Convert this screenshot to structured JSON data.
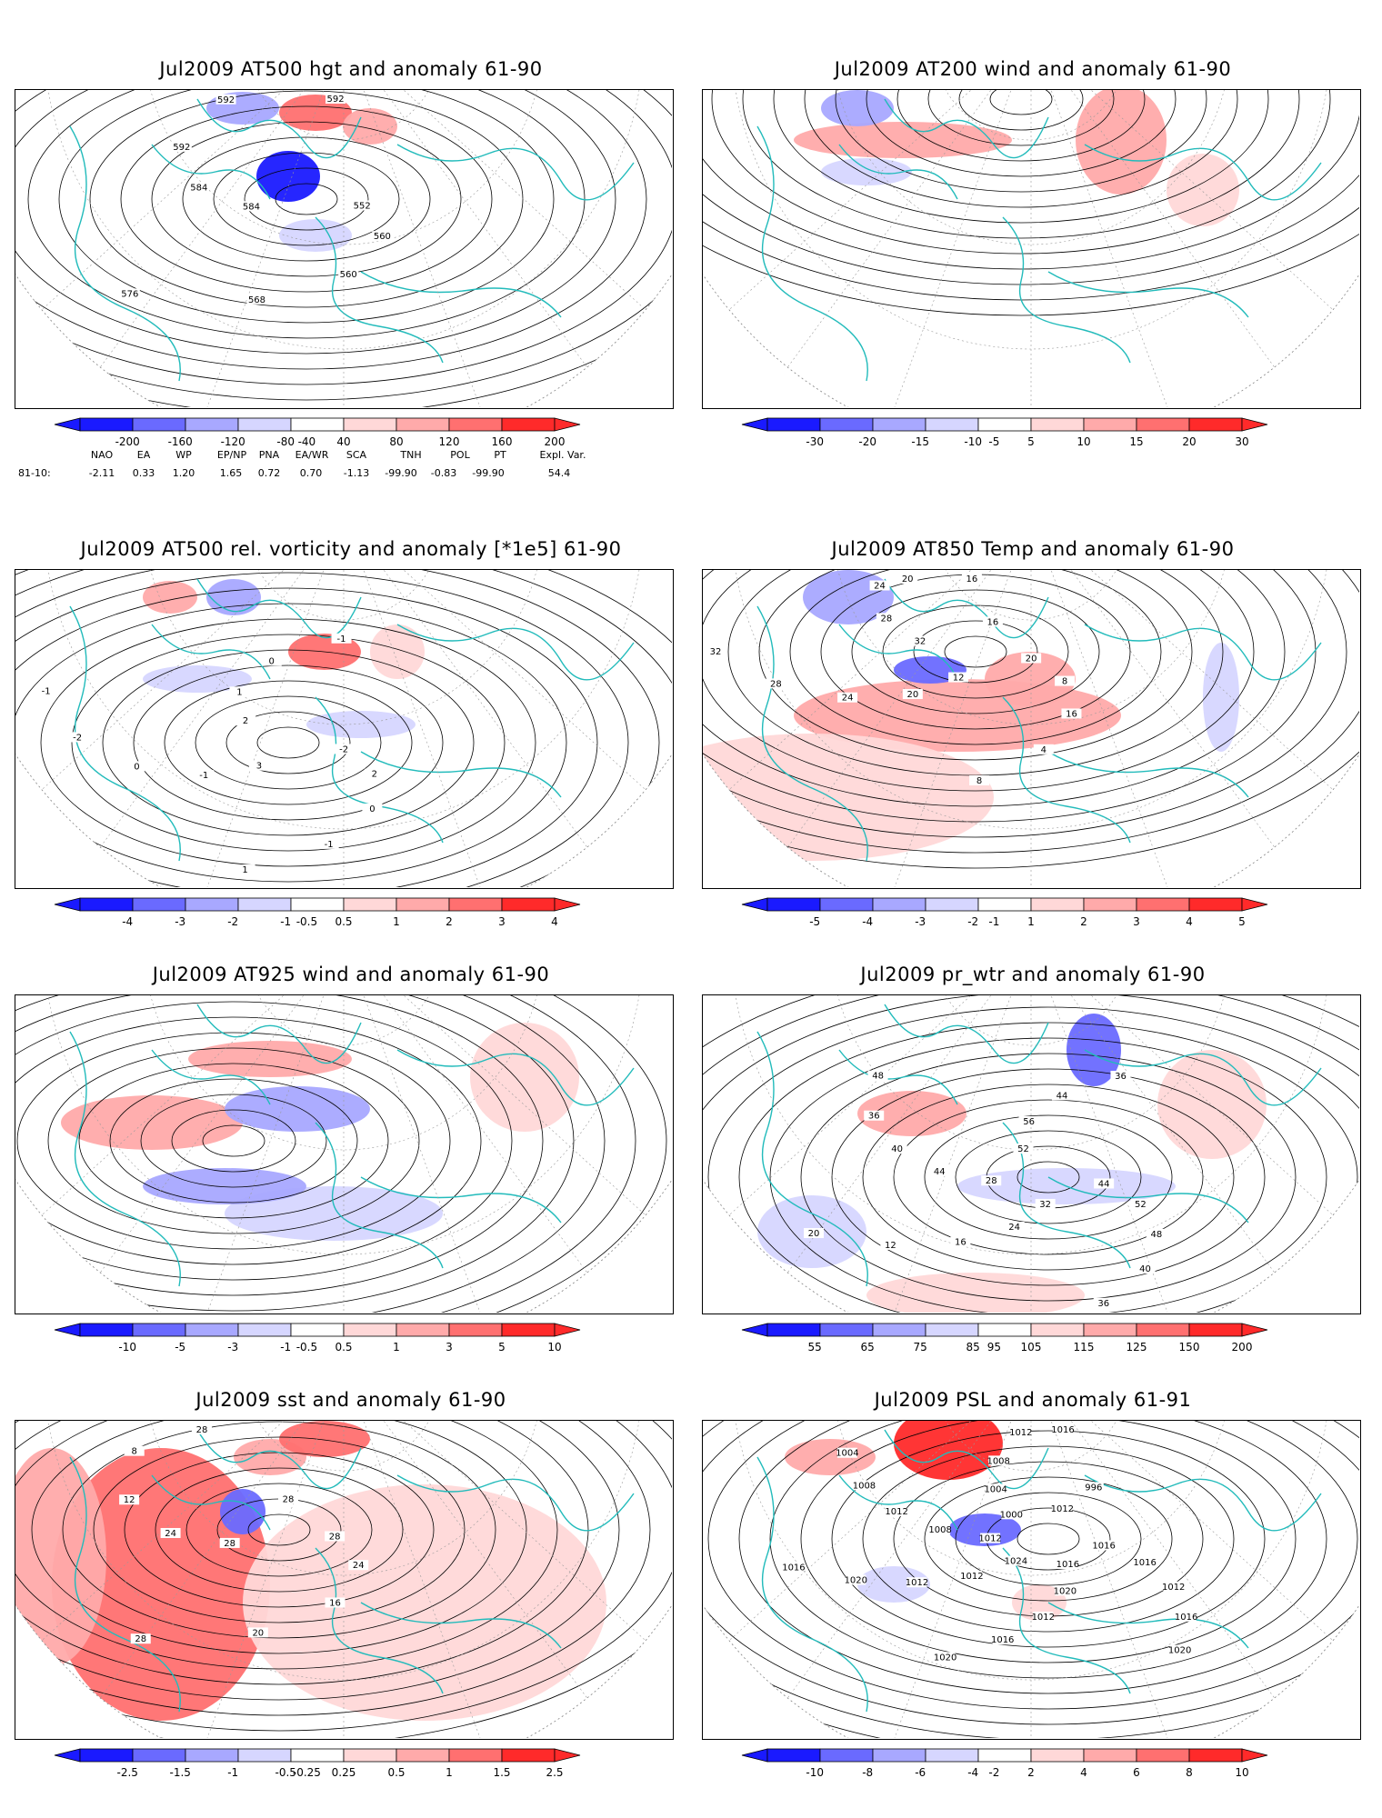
{
  "panels": [
    {
      "id": "p1",
      "title": "Jul2009 AT500 hgt and anomaly 61-90",
      "contour_labels": [
        "552",
        "560",
        "560",
        "568",
        "576",
        "584",
        "584",
        "592",
        "592",
        "592"
      ],
      "colorbar": {
        "labels": [
          "-200",
          "-160",
          "-120",
          "-80",
          "-40",
          "40",
          "80",
          "120",
          "160",
          "200"
        ]
      }
    },
    {
      "id": "p2",
      "title": "Jul2009 AT200 wind and anomaly 61-90",
      "contour_labels": [],
      "colorbar": {
        "labels": [
          "-30",
          "-20",
          "-15",
          "-10",
          "-5",
          "5",
          "10",
          "15",
          "20",
          "30"
        ]
      }
    },
    {
      "id": "p3",
      "title": "Jul2009 AT500 rel. vorticity and anomaly [*1e5] 61-90",
      "contour_labels": [
        "-2",
        "2",
        "0",
        "-1",
        "1",
        "3",
        "-1",
        "0",
        "-2",
        "-1",
        "2",
        "1",
        "0",
        "-1"
      ],
      "colorbar": {
        "labels": [
          "-4",
          "-3",
          "-2",
          "-1",
          "-0.5",
          "0.5",
          "1",
          "2",
          "3",
          "4"
        ]
      }
    },
    {
      "id": "p4",
      "title": "Jul2009 AT850 Temp and anomaly 61-90",
      "contour_labels": [
        "20",
        "8",
        "16",
        "4",
        "8",
        "12",
        "20",
        "24",
        "28",
        "32",
        "32",
        "28",
        "24",
        "20",
        "16",
        "16"
      ],
      "colorbar": {
        "labels": [
          "-5",
          "-4",
          "-3",
          "-2",
          "-1",
          "1",
          "2",
          "3",
          "4",
          "5"
        ]
      }
    },
    {
      "id": "p5",
      "title": "Jul2009 AT925 wind and anomaly 61-90",
      "contour_labels": [],
      "colorbar": {
        "labels": [
          "-10",
          "-5",
          "-3",
          "-1",
          "-0.5",
          "0.5",
          "1",
          "3",
          "5",
          "10"
        ]
      }
    },
    {
      "id": "p6",
      "title": "Jul2009 pr_wtr and anomaly 61-90",
      "contour_labels": [
        "44",
        "52",
        "48",
        "40",
        "36",
        "32",
        "24",
        "16",
        "12",
        "20",
        "28",
        "44",
        "40",
        "36",
        "48",
        "52",
        "56",
        "44",
        "36"
      ],
      "colorbar": {
        "labels": [
          "55",
          "65",
          "75",
          "85",
          "95",
          "105",
          "115",
          "125",
          "150",
          "200"
        ]
      }
    },
    {
      "id": "p7",
      "title": "Jul2009 sst and anomaly 61-90",
      "contour_labels": [
        "28",
        "24",
        "16",
        "20",
        "28",
        "28",
        "24",
        "12",
        "8",
        "28",
        "28"
      ],
      "colorbar": {
        "labels": [
          "-2.5",
          "-1.5",
          "-1",
          "-0.5",
          "-0.25",
          "0.25",
          "0.5",
          "1",
          "1.5",
          "2.5"
        ]
      }
    },
    {
      "id": "p8",
      "title": "Jul2009 PSL and anomaly 61-91",
      "contour_labels": [
        "1016",
        "1016",
        "1012",
        "1016",
        "1020",
        "1016",
        "1020",
        "1012",
        "1016",
        "1020",
        "1024",
        "1012",
        "1012",
        "1020",
        "1016",
        "1012",
        "1008",
        "1012",
        "1008",
        "1004",
        "1000",
        "1004",
        "1008",
        "1012",
        "1016",
        "1012",
        "996"
      ],
      "colorbar": {
        "labels": [
          "-10",
          "-8",
          "-6",
          "-4",
          "-2",
          "2",
          "4",
          "6",
          "8",
          "10"
        ]
      }
    }
  ],
  "index_table": {
    "headers": [
      "NAO",
      "EA",
      "WP",
      "EP/NP",
      "PNA",
      "EA/WR",
      "SCA",
      "TNH",
      "POL",
      "PT",
      "Expl. Var."
    ],
    "row_label": "81-10:",
    "values": [
      "-2.11",
      "0.33",
      "1.20",
      "1.65",
      "0.72",
      "0.70",
      "-1.13",
      "-99.90",
      "-0.83",
      "-99.90",
      "54.4"
    ]
  },
  "colors": {
    "blue_strong": "#1a1aff",
    "blue_mid": "#6a6aff",
    "blue_light": "#a8a8ff",
    "blue_pale": "#d6d6ff",
    "red_pale": "#ffd8d8",
    "red_light": "#ffaaaa",
    "red_mid": "#ff7070",
    "red_strong": "#ff2a2a",
    "coast": "#22bbbb",
    "contour": "#000000",
    "graticule": "#999999"
  }
}
